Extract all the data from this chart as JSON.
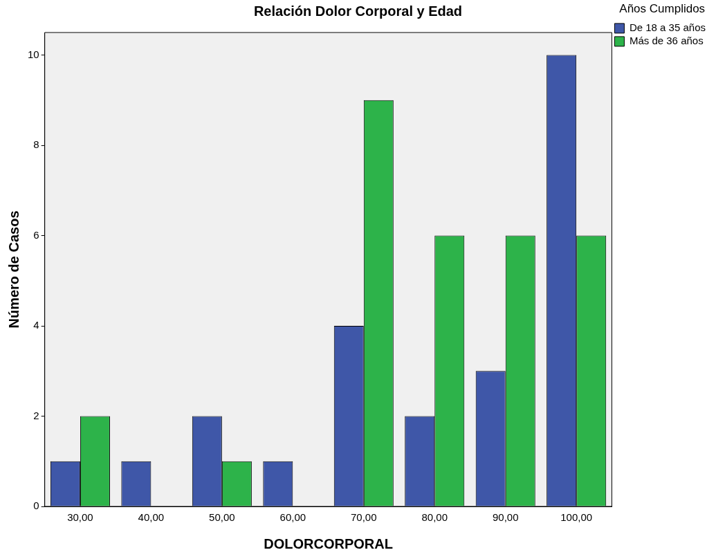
{
  "chart_data": {
    "type": "bar",
    "title": "Relación Dolor Corporal y Edad",
    "xlabel": "DOLORCORPORAL",
    "ylabel": "Número de Casos",
    "legend_title": "Años Cumplidos",
    "categories": [
      "30,00",
      "40,00",
      "50,00",
      "60,00",
      "70,00",
      "80,00",
      "90,00",
      "100,00"
    ],
    "series": [
      {
        "name": "De 18 a 35 años",
        "color": "#3f57a8",
        "values": [
          1,
          1,
          2,
          1,
          4,
          2,
          3,
          10
        ]
      },
      {
        "name": "Más de 36 años",
        "color": "#2db34a",
        "values": [
          2,
          null,
          1,
          null,
          9,
          6,
          6,
          6
        ]
      }
    ],
    "ylim": [
      0,
      10.5
    ],
    "yticks": [
      0,
      2,
      4,
      6,
      8,
      10
    ],
    "grid": false,
    "legend": "top right"
  }
}
